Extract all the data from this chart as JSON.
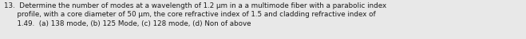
{
  "text_block": "13.  Determine the number of modes at a wavelength of 1.2 μm in a a multimode fiber with a parabolic index\n      profile, with a core diameter of 50 μm, the core refractive index of 1.5 and cladding refractive index of\n      1.49.  (a) 138 mode, (b) 125 Mode, (c) 128 mode, (d) Non of above",
  "font_size": 6.3,
  "text_color": "#1a1a1a",
  "background_color": "#e8e8e8",
  "fig_width": 6.59,
  "fig_height": 0.5,
  "dpi": 100
}
